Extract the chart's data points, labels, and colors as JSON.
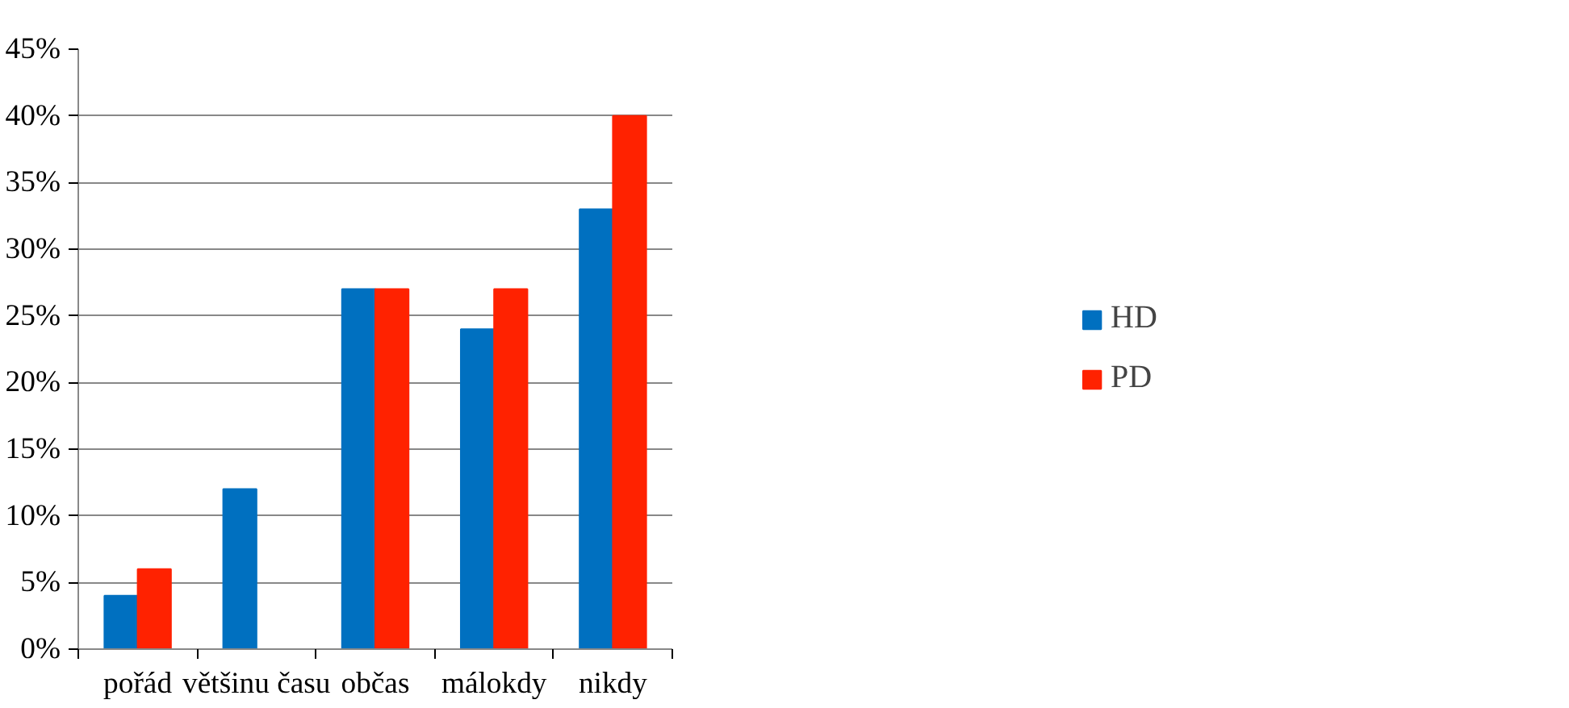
{
  "chart_data": {
    "type": "bar",
    "categories": [
      "pořád",
      "většinu času",
      "občas",
      "málokdy",
      "nikdy"
    ],
    "series": [
      {
        "name": "HD",
        "color": "#0070c0",
        "values": [
          4,
          12,
          27,
          24,
          33
        ]
      },
      {
        "name": "PD",
        "color": "#ff2200",
        "values": [
          6,
          0,
          27,
          27,
          40
        ]
      }
    ],
    "ylim": [
      0,
      45
    ],
    "yticks": [
      {
        "value": 0,
        "label": "0%"
      },
      {
        "value": 5,
        "label": "5%"
      },
      {
        "value": 10,
        "label": "10%"
      },
      {
        "value": 15,
        "label": "15%"
      },
      {
        "value": 20,
        "label": "20%"
      },
      {
        "value": 25,
        "label": "25%"
      },
      {
        "value": 30,
        "label": "30%"
      },
      {
        "value": 35,
        "label": "35%"
      },
      {
        "value": 40,
        "label": "40%"
      },
      {
        "value": 45,
        "label": "45%"
      }
    ],
    "grid": "y",
    "legend": "right"
  }
}
